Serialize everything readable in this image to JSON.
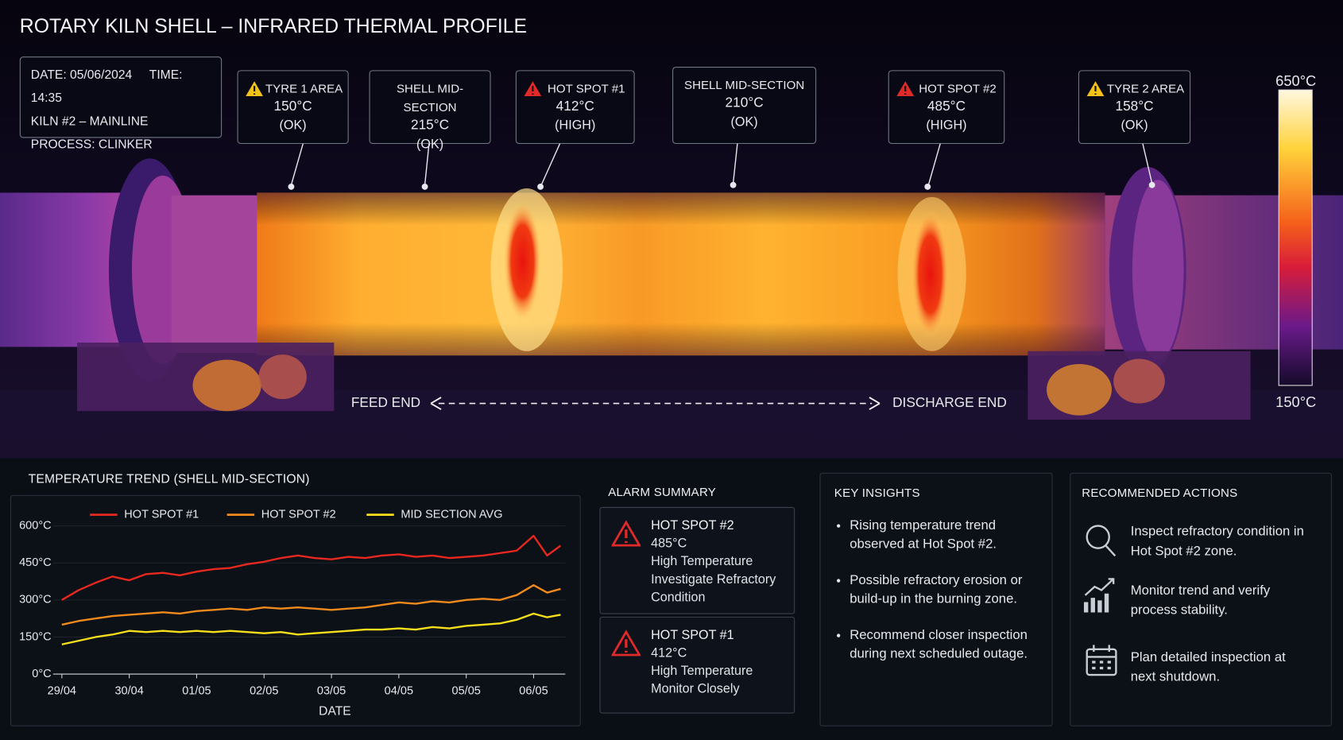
{
  "title": "ROTARY KILN SHELL – INFRARED THERMAL PROFILE",
  "info": {
    "date": "DATE: 05/06/2024",
    "time": "TIME: 14:35",
    "kiln": "KILN #2 – MAINLINE",
    "process": "PROCESS: CLINKER"
  },
  "callouts": [
    {
      "label": "TYRE 1 AREA",
      "temp": "150°C",
      "status": "(OK)"
    },
    {
      "label": "SHELL MID-SECTION",
      "temp": "215°C",
      "status": "(OK)"
    },
    {
      "label": "HOT SPOT #1",
      "temp": "412°C",
      "status": "(HIGH)"
    },
    {
      "label": "SHELL MID-SECTION",
      "temp": "210°C",
      "status": "(OK)"
    },
    {
      "label": "HOT SPOT #2",
      "temp": "485°C",
      "status": "(HIGH)"
    },
    {
      "label": "TYRE 2 AREA",
      "temp": "158°C",
      "status": "(OK)"
    }
  ],
  "scale": {
    "max": "650°C",
    "min": "150°C"
  },
  "direction": {
    "start": "FEED END",
    "end": "DISCHARGE END"
  },
  "chart_data": {
    "type": "line",
    "title": "TEMPERATURE TREND (SHELL MID-SECTION)",
    "x_label": "DATE",
    "x": [
      0,
      0.25,
      0.5,
      0.75,
      1,
      1.25,
      1.5,
      1.75,
      2,
      2.25,
      2.5,
      2.75,
      3,
      3.25,
      3.5,
      3.75,
      4,
      4.25,
      4.5,
      4.75,
      5,
      5.25,
      5.5,
      5.75,
      6,
      6.25,
      6.5,
      6.75,
      7,
      7.2,
      7.4
    ],
    "xlim": [
      -0.13,
      7.47
    ],
    "xticks": [
      {
        "value": 0,
        "label": "29/04"
      },
      {
        "value": 1,
        "label": "30/04"
      },
      {
        "value": 2,
        "label": "01/05"
      },
      {
        "value": 3,
        "label": "02/05"
      },
      {
        "value": 4,
        "label": "03/05"
      },
      {
        "value": 5,
        "label": "04/05"
      },
      {
        "value": 6,
        "label": "05/05"
      },
      {
        "value": 7,
        "label": "06/05"
      }
    ],
    "ylim": [
      0,
      680
    ],
    "yticks": [
      {
        "value": 0,
        "label": "0°C"
      },
      {
        "value": 150,
        "label": "150°C"
      },
      {
        "value": 300,
        "label": "300°C"
      },
      {
        "value": 450,
        "label": "450°C"
      },
      {
        "value": 600,
        "label": "600°C"
      }
    ],
    "grid": true,
    "legend": "top",
    "series": [
      {
        "name": "HOT SPOT #1",
        "color": "#e8281e",
        "values": [
          300,
          340,
          370,
          395,
          380,
          405,
          410,
          400,
          415,
          425,
          430,
          445,
          455,
          470,
          480,
          470,
          465,
          475,
          470,
          480,
          485,
          475,
          480,
          470,
          475,
          480,
          490,
          500,
          560,
          480,
          520
        ]
      },
      {
        "name": "HOT SPOT #2",
        "color": "#f08a1c",
        "values": [
          200,
          215,
          225,
          235,
          240,
          245,
          250,
          245,
          255,
          260,
          265,
          260,
          270,
          265,
          270,
          265,
          260,
          265,
          270,
          280,
          290,
          285,
          295,
          290,
          300,
          305,
          300,
          320,
          360,
          330,
          345
        ]
      },
      {
        "name": "MID SECTION AVG",
        "color": "#f5de1a",
        "values": [
          120,
          135,
          150,
          160,
          175,
          170,
          175,
          170,
          175,
          170,
          175,
          170,
          165,
          170,
          160,
          165,
          170,
          175,
          180,
          180,
          185,
          180,
          190,
          185,
          195,
          200,
          205,
          220,
          245,
          230,
          240
        ]
      }
    ]
  },
  "alarm_summary": {
    "title": "ALARM SUMMARY",
    "alarms": [
      {
        "name": "HOT SPOT #2",
        "temp": "485°C",
        "condition": "High Temperature",
        "action": "Investigate Refractory Condition"
      },
      {
        "name": "HOT SPOT #1",
        "temp": "412°C",
        "condition": "High Temperature",
        "action": "Monitor Closely"
      }
    ]
  },
  "key_insights": {
    "title": "KEY INSIGHTS",
    "items": [
      "Rising temperature trend observed at Hot Spot #2.",
      "Possible refractory erosion or build-up in the burning zone.",
      "Recommend closer inspection during next scheduled outage."
    ]
  },
  "recommended_actions": {
    "title": "RECOMMENDED ACTIONS",
    "items": [
      "Inspect refractory condition in Hot Spot #2 zone.",
      "Monitor trend and verify process stability.",
      "Plan detailed inspection at next shutdown."
    ]
  }
}
